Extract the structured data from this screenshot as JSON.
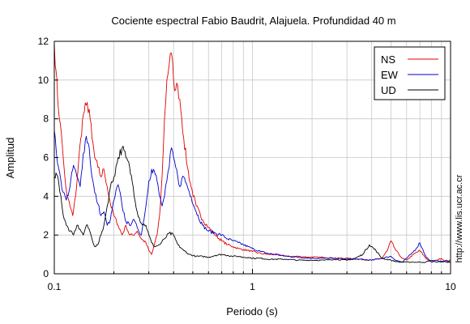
{
  "chart_data": {
    "type": "line",
    "title": "Cociente espectral Fabio Baudrit, Alajuela. Profundidad 40 m",
    "xlabel": "Periodo (s)",
    "ylabel": "Amplitud",
    "xscale": "log",
    "xlim": [
      0.1,
      10
    ],
    "ylim": [
      0,
      12
    ],
    "x_ticks": [
      0.1,
      1,
      10
    ],
    "x_tick_labels": [
      "0.1",
      "1",
      "10"
    ],
    "y_ticks": [
      0,
      2,
      4,
      6,
      8,
      10,
      12
    ],
    "y_tick_labels": [
      "0",
      "2",
      "4",
      "6",
      "8",
      "10",
      "12"
    ],
    "grid": true,
    "legend_position": "top-right",
    "credit": "http://www.lis.ucr.ac.cr",
    "series": [
      {
        "name": "NS",
        "color": "#e00000",
        "x": [
          0.1,
          0.102,
          0.104,
          0.107,
          0.11,
          0.113,
          0.116,
          0.12,
          0.124,
          0.128,
          0.132,
          0.136,
          0.14,
          0.145,
          0.15,
          0.155,
          0.16,
          0.166,
          0.172,
          0.178,
          0.185,
          0.192,
          0.2,
          0.21,
          0.22,
          0.23,
          0.24,
          0.25,
          0.262,
          0.275,
          0.29,
          0.3,
          0.31,
          0.32,
          0.33,
          0.34,
          0.35,
          0.36,
          0.37,
          0.38,
          0.39,
          0.4,
          0.41,
          0.42,
          0.43,
          0.44,
          0.45,
          0.47,
          0.49,
          0.52,
          0.56,
          0.6,
          0.65,
          0.7,
          0.75,
          0.8,
          0.85,
          0.9,
          0.95,
          1.0,
          1.1,
          1.2,
          1.3,
          1.4,
          1.5,
          1.7,
          2.0,
          2.3,
          2.6,
          3.0,
          3.5,
          4.0,
          4.5,
          4.8,
          5.0,
          5.3,
          5.7,
          6.0,
          6.5,
          7.0,
          7.5,
          8.0,
          8.5,
          9.0,
          9.5,
          10.0
        ],
        "y": [
          11.9,
          10.5,
          9.0,
          7.8,
          6.5,
          5.0,
          4.0,
          3.5,
          3.0,
          4.0,
          5.5,
          7.0,
          8.2,
          8.7,
          8.5,
          7.0,
          6.0,
          5.5,
          5.0,
          5.4,
          4.5,
          3.6,
          3.0,
          2.5,
          2.0,
          2.5,
          2.0,
          2.0,
          2.2,
          1.8,
          1.6,
          1.2,
          1.0,
          1.5,
          2.0,
          3.0,
          5.0,
          8.0,
          10.0,
          10.8,
          11.4,
          10.0,
          9.5,
          9.7,
          9.0,
          8.0,
          7.0,
          5.5,
          4.5,
          3.5,
          2.8,
          2.4,
          2.0,
          1.7,
          1.5,
          1.4,
          1.3,
          1.25,
          1.2,
          1.15,
          1.05,
          1.0,
          1.0,
          0.95,
          0.9,
          0.9,
          0.85,
          0.85,
          0.8,
          0.8,
          0.75,
          0.7,
          0.8,
          1.2,
          1.7,
          1.2,
          0.8,
          0.7,
          1.0,
          1.2,
          0.8,
          0.6,
          0.7,
          0.8,
          0.6,
          0.7
        ]
      },
      {
        "name": "EW",
        "color": "#0000cc",
        "x": [
          0.1,
          0.102,
          0.105,
          0.108,
          0.111,
          0.115,
          0.12,
          0.125,
          0.13,
          0.135,
          0.14,
          0.145,
          0.15,
          0.155,
          0.16,
          0.166,
          0.172,
          0.178,
          0.185,
          0.192,
          0.2,
          0.21,
          0.22,
          0.23,
          0.24,
          0.25,
          0.262,
          0.275,
          0.29,
          0.3,
          0.31,
          0.32,
          0.33,
          0.34,
          0.35,
          0.36,
          0.37,
          0.38,
          0.39,
          0.4,
          0.41,
          0.42,
          0.43,
          0.44,
          0.45,
          0.47,
          0.49,
          0.52,
          0.56,
          0.6,
          0.65,
          0.7,
          0.75,
          0.8,
          0.85,
          0.9,
          0.95,
          1.0,
          1.1,
          1.2,
          1.3,
          1.4,
          1.5,
          1.7,
          2.0,
          2.3,
          2.6,
          3.0,
          3.5,
          4.0,
          4.5,
          5.0,
          5.3,
          5.7,
          6.0,
          6.3,
          6.7,
          7.0,
          7.5,
          8.0,
          8.5,
          9.0,
          9.5,
          10.0
        ],
        "y": [
          7.4,
          6.5,
          5.5,
          4.8,
          4.2,
          3.8,
          4.5,
          5.6,
          5.0,
          4.5,
          6.2,
          7.1,
          6.5,
          5.0,
          4.2,
          3.6,
          3.0,
          3.2,
          2.5,
          2.8,
          3.8,
          4.6,
          3.5,
          2.7,
          2.5,
          2.8,
          2.4,
          2.0,
          3.5,
          4.8,
          5.4,
          5.3,
          4.8,
          4.0,
          3.5,
          4.0,
          4.8,
          5.5,
          6.5,
          6.0,
          5.5,
          5.0,
          4.5,
          4.9,
          5.0,
          4.5,
          4.0,
          3.2,
          2.5,
          2.2,
          2.1,
          2.0,
          1.8,
          1.7,
          1.6,
          1.5,
          1.4,
          1.3,
          1.15,
          1.05,
          1.0,
          0.95,
          0.9,
          0.85,
          0.8,
          0.8,
          0.8,
          0.75,
          0.75,
          0.7,
          0.8,
          0.9,
          0.7,
          0.6,
          0.8,
          1.0,
          1.3,
          1.6,
          0.9,
          0.6,
          0.7,
          0.6,
          0.7,
          0.6
        ]
      },
      {
        "name": "UD",
        "color": "#000000",
        "x": [
          0.1,
          0.102,
          0.105,
          0.108,
          0.111,
          0.115,
          0.12,
          0.125,
          0.13,
          0.135,
          0.14,
          0.145,
          0.15,
          0.155,
          0.16,
          0.166,
          0.172,
          0.178,
          0.185,
          0.192,
          0.2,
          0.21,
          0.22,
          0.23,
          0.24,
          0.25,
          0.262,
          0.275,
          0.29,
          0.3,
          0.31,
          0.32,
          0.34,
          0.36,
          0.38,
          0.4,
          0.42,
          0.45,
          0.48,
          0.52,
          0.56,
          0.6,
          0.65,
          0.7,
          0.75,
          0.8,
          0.85,
          0.9,
          0.95,
          1.0,
          1.1,
          1.2,
          1.3,
          1.4,
          1.5,
          1.7,
          2.0,
          2.3,
          2.6,
          3.0,
          3.3,
          3.6,
          3.9,
          4.2,
          4.5,
          5.0,
          5.5,
          6.0,
          6.5,
          7.0,
          7.5,
          8.0,
          8.5,
          9.0,
          9.5,
          10.0
        ],
        "y": [
          5.0,
          5.2,
          4.8,
          4.0,
          3.0,
          2.5,
          2.2,
          2.0,
          2.5,
          2.3,
          2.0,
          2.5,
          2.3,
          1.8,
          1.4,
          1.5,
          2.0,
          2.5,
          3.5,
          4.5,
          5.0,
          6.0,
          6.5,
          6.0,
          5.5,
          4.5,
          3.2,
          2.6,
          2.5,
          2.0,
          1.6,
          1.4,
          1.5,
          1.8,
          2.1,
          2.0,
          1.5,
          1.2,
          1.0,
          0.9,
          0.9,
          0.85,
          0.95,
          1.0,
          0.95,
          0.9,
          0.9,
          0.85,
          0.85,
          0.8,
          0.8,
          0.75,
          0.75,
          0.75,
          0.75,
          0.7,
          0.7,
          0.7,
          0.75,
          0.7,
          0.8,
          1.0,
          1.5,
          1.2,
          0.8,
          0.7,
          0.6,
          0.6,
          0.6,
          0.6,
          0.6,
          0.7,
          0.6,
          0.65,
          0.6,
          0.6
        ]
      }
    ]
  }
}
